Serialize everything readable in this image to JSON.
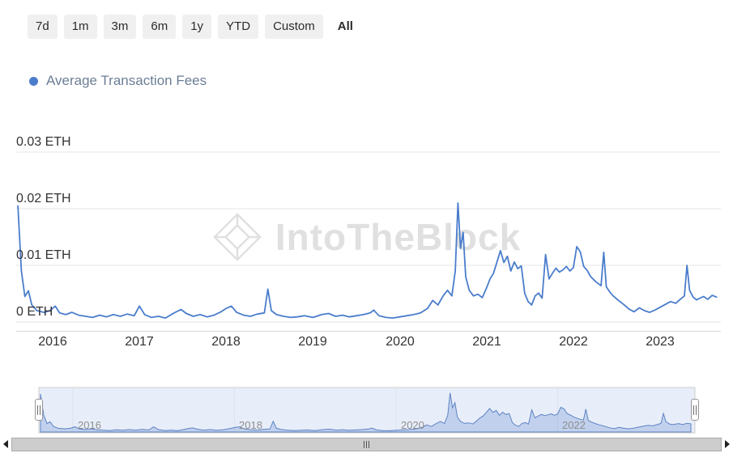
{
  "range_selector": {
    "buttons": [
      {
        "label": "7d",
        "active": false
      },
      {
        "label": "1m",
        "active": false
      },
      {
        "label": "3m",
        "active": false
      },
      {
        "label": "6m",
        "active": false
      },
      {
        "label": "1y",
        "active": false
      },
      {
        "label": "YTD",
        "active": false
      },
      {
        "label": "Custom",
        "active": false
      },
      {
        "label": "All",
        "active": true
      }
    ]
  },
  "legend": {
    "label": "Average Transaction Fees",
    "marker_color": "#4a7dcc"
  },
  "watermark": {
    "text": "IntoTheBlock"
  },
  "chart_data": {
    "type": "line",
    "title": "Average Transaction Fees",
    "series_name": "Average Transaction Fees",
    "unit": "ETH",
    "line_color": "#4a7dcc",
    "xlabel": "",
    "ylabel": "",
    "ylim": [
      0,
      0.03
    ],
    "xlim": [
      2015.58,
      2023.7
    ],
    "grid": true,
    "legend_position": "top-left",
    "yticks": [
      {
        "value": 0.03,
        "label": "0.03 ETH"
      },
      {
        "value": 0.02,
        "label": "0.02 ETH"
      },
      {
        "value": 0.01,
        "label": "0.01 ETH"
      },
      {
        "value": 0,
        "label": "0 ETH"
      }
    ],
    "xticks": [
      2016,
      2017,
      2018,
      2019,
      2020,
      2021,
      2022,
      2023
    ],
    "x": [
      2015.6,
      2015.64,
      2015.68,
      2015.72,
      2015.76,
      2015.82,
      2015.9,
      2015.97,
      2016.03,
      2016.08,
      2016.15,
      2016.22,
      2016.3,
      2016.38,
      2016.46,
      2016.54,
      2016.62,
      2016.7,
      2016.78,
      2016.86,
      2016.94,
      2017,
      2017.06,
      2017.14,
      2017.22,
      2017.3,
      2017.4,
      2017.48,
      2017.54,
      2017.62,
      2017.7,
      2017.78,
      2017.86,
      2017.94,
      2018,
      2018.06,
      2018.12,
      2018.2,
      2018.28,
      2018.36,
      2018.44,
      2018.48,
      2018.52,
      2018.58,
      2018.66,
      2018.74,
      2018.82,
      2018.9,
      2019,
      2019.1,
      2019.18,
      2019.26,
      2019.34,
      2019.42,
      2019.5,
      2019.58,
      2019.66,
      2019.7,
      2019.76,
      2019.84,
      2019.92,
      2020,
      2020.08,
      2020.16,
      2020.24,
      2020.32,
      2020.38,
      2020.44,
      2020.5,
      2020.55,
      2020.6,
      2020.64,
      2020.67,
      2020.7,
      2020.73,
      2020.76,
      2020.8,
      2020.85,
      2020.9,
      2020.95,
      2021,
      2021.04,
      2021.08,
      2021.12,
      2021.16,
      2021.2,
      2021.24,
      2021.28,
      2021.32,
      2021.36,
      2021.4,
      2021.44,
      2021.48,
      2021.52,
      2021.56,
      2021.6,
      2021.64,
      2021.68,
      2021.72,
      2021.76,
      2021.8,
      2021.84,
      2021.88,
      2021.92,
      2021.96,
      2022,
      2022.04,
      2022.08,
      2022.12,
      2022.16,
      2022.2,
      2022.26,
      2022.32,
      2022.35,
      2022.38,
      2022.42,
      2022.46,
      2022.52,
      2022.58,
      2022.64,
      2022.7,
      2022.76,
      2022.82,
      2022.88,
      2022.94,
      2023,
      2023.06,
      2023.12,
      2023.18,
      2023.24,
      2023.28,
      2023.31,
      2023.34,
      2023.38,
      2023.42,
      2023.46,
      2023.5,
      2023.55,
      2023.6,
      2023.65
    ],
    "values": [
      0.0205,
      0.009,
      0.0045,
      0.0055,
      0.003,
      0.002,
      0.0017,
      0.002,
      0.0028,
      0.0016,
      0.0013,
      0.0017,
      0.0012,
      0.001,
      0.0008,
      0.0012,
      0.0009,
      0.0013,
      0.001,
      0.0014,
      0.0011,
      0.0028,
      0.0013,
      0.0008,
      0.001,
      0.0007,
      0.0016,
      0.0022,
      0.0015,
      0.001,
      0.0013,
      0.0009,
      0.0012,
      0.0018,
      0.0024,
      0.0028,
      0.0017,
      0.0012,
      0.001,
      0.0014,
      0.0016,
      0.0058,
      0.002,
      0.0013,
      0.001,
      0.0008,
      0.0009,
      0.0011,
      0.0008,
      0.0013,
      0.0015,
      0.001,
      0.0012,
      0.0009,
      0.0011,
      0.0013,
      0.0016,
      0.0021,
      0.0011,
      0.0008,
      0.0007,
      0.0009,
      0.0011,
      0.0013,
      0.0016,
      0.0024,
      0.0038,
      0.003,
      0.0046,
      0.0056,
      0.0046,
      0.009,
      0.021,
      0.013,
      0.0158,
      0.008,
      0.0056,
      0.0046,
      0.0049,
      0.0043,
      0.006,
      0.0076,
      0.0086,
      0.0106,
      0.0126,
      0.0105,
      0.0116,
      0.009,
      0.0106,
      0.0094,
      0.0099,
      0.005,
      0.0036,
      0.003,
      0.0046,
      0.0051,
      0.0042,
      0.0119,
      0.0076,
      0.0086,
      0.0095,
      0.0088,
      0.0092,
      0.0098,
      0.009,
      0.0096,
      0.0133,
      0.0124,
      0.0098,
      0.0091,
      0.008,
      0.0071,
      0.0064,
      0.0123,
      0.0062,
      0.0053,
      0.0046,
      0.0038,
      0.0031,
      0.0023,
      0.0018,
      0.0025,
      0.002,
      0.0017,
      0.0021,
      0.0026,
      0.0031,
      0.0036,
      0.0033,
      0.0041,
      0.0046,
      0.01,
      0.0056,
      0.0044,
      0.0039,
      0.0042,
      0.0045,
      0.004,
      0.0047,
      0.0044
    ]
  },
  "navigator": {
    "labels": [
      "2016",
      "2018",
      "2020",
      "2022"
    ],
    "label_years": [
      2016,
      2018,
      2020,
      2022
    ],
    "fill_color": "rgba(77,124,205,0.25)",
    "line_color": "#5d82c4"
  }
}
